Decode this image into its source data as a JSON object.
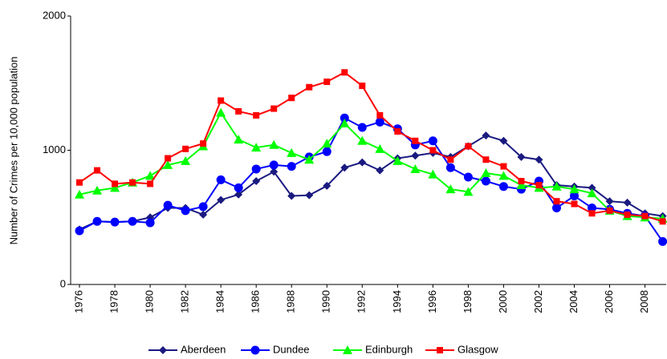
{
  "chart_data": {
    "type": "line",
    "y_label": "Number of Crimes per 10,000 population",
    "x": [
      1976,
      1977,
      1978,
      1979,
      1980,
      1981,
      1982,
      1983,
      1984,
      1985,
      1986,
      1987,
      1988,
      1989,
      1990,
      1991,
      1992,
      1993,
      1994,
      1995,
      1996,
      1997,
      1998,
      1999,
      2000,
      2001,
      2002,
      2003,
      2004,
      2005,
      2006,
      2007,
      2008,
      2009
    ],
    "xlim": [
      1975.5,
      2009.2
    ],
    "xticks": [
      1976,
      1978,
      1980,
      1982,
      1984,
      1986,
      1988,
      1990,
      1992,
      1994,
      1996,
      1998,
      2000,
      2002,
      2004,
      2006,
      2008
    ],
    "ylim": [
      0,
      2000
    ],
    "yticks": [
      0,
      1000,
      2000
    ],
    "grid": false,
    "legend": "bottom",
    "series": [
      {
        "name": "Aberdeen",
        "color": "#1a1a80",
        "marker": "diamond",
        "values": [
          410,
          470,
          465,
          470,
          500,
          570,
          570,
          520,
          630,
          670,
          770,
          840,
          660,
          665,
          735,
          870,
          910,
          850,
          940,
          960,
          980,
          950,
          1030,
          1110,
          1070,
          950,
          930,
          740,
          730,
          720,
          620,
          610,
          530,
          510
        ]
      },
      {
        "name": "Dundee",
        "color": "#0000ff",
        "marker": "circle",
        "values": [
          400,
          470,
          465,
          470,
          460,
          590,
          550,
          580,
          780,
          720,
          860,
          890,
          880,
          950,
          990,
          1240,
          1170,
          1210,
          1160,
          1040,
          1070,
          870,
          800,
          770,
          730,
          710,
          770,
          570,
          660,
          570,
          560,
          530,
          510,
          320
        ]
      },
      {
        "name": "Edinburgh",
        "color": "#00ff00",
        "marker": "triangle",
        "values": [
          670,
          700,
          720,
          760,
          810,
          890,
          920,
          1030,
          1280,
          1080,
          1020,
          1040,
          980,
          930,
          1050,
          1200,
          1070,
          1010,
          920,
          860,
          820,
          710,
          690,
          830,
          810,
          740,
          720,
          730,
          710,
          680,
          550,
          510,
          500,
          490
        ]
      },
      {
        "name": "Glasgow",
        "color": "#ff0000",
        "marker": "square",
        "values": [
          760,
          850,
          750,
          760,
          750,
          940,
          1010,
          1050,
          1370,
          1290,
          1260,
          1310,
          1390,
          1470,
          1510,
          1580,
          1480,
          1260,
          1140,
          1070,
          1000,
          930,
          1030,
          930,
          880,
          770,
          740,
          620,
          600,
          530,
          550,
          520,
          510,
          470
        ]
      }
    ]
  }
}
